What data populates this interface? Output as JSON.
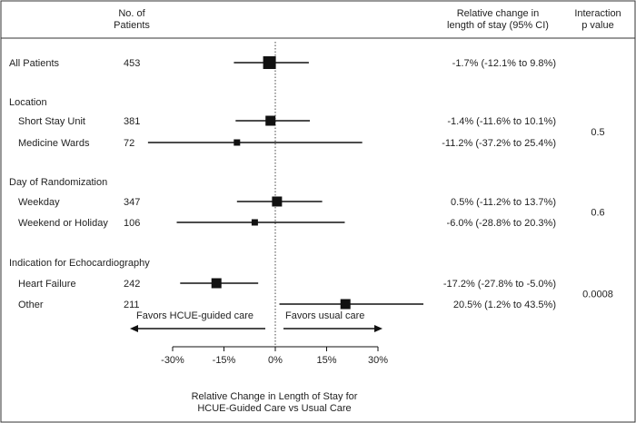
{
  "headers": {
    "patients_line1": "No. of",
    "patients_line2": "Patients",
    "rel_line1": "Relative change in",
    "rel_line2": "length of stay (95% CI)",
    "int_line1": "Interaction",
    "int_line2": "p value"
  },
  "favors_left": "Favors HCUE-guided care",
  "favors_right": "Favors usual care",
  "chart_data": {
    "type": "forest",
    "xlabel_line1": "Relative Change in Length of Stay for",
    "xlabel_line2": "HCUE-Guided Care vs Usual Care",
    "xlim": [
      -0.3,
      0.3
    ],
    "xticks": [
      -0.3,
      -0.15,
      0,
      0.15,
      0.3
    ],
    "xtick_labels": [
      "-30%",
      "-15%",
      "0%",
      "15%",
      "30%"
    ],
    "rows": [
      {
        "type": "item",
        "label": "All Patients",
        "indent": false,
        "n": "453",
        "est": -0.017,
        "lo": -0.121,
        "hi": 0.098,
        "ci_text": "-1.7% (-12.1% to 9.8%)",
        "box": "large"
      },
      {
        "type": "group",
        "label": "Location"
      },
      {
        "type": "item",
        "label": "Short Stay Unit",
        "indent": true,
        "n": "381",
        "est": -0.014,
        "lo": -0.116,
        "hi": 0.101,
        "ci_text": "-1.4% (-11.6% to 10.1%)",
        "box": "medium"
      },
      {
        "type": "item",
        "label": "Medicine Wards",
        "indent": true,
        "n": "72",
        "est": -0.112,
        "lo": -0.372,
        "hi": 0.254,
        "ci_text": "-11.2% (-37.2% to 25.4%)",
        "box": "small"
      },
      {
        "type": "group",
        "label": "Day of Randomization"
      },
      {
        "type": "item",
        "label": "Weekday",
        "indent": true,
        "n": "347",
        "est": 0.005,
        "lo": -0.112,
        "hi": 0.137,
        "ci_text": "0.5% (-11.2% to 13.7%)",
        "box": "medium"
      },
      {
        "type": "item",
        "label": "Weekend or Holiday",
        "indent": true,
        "n": "106",
        "est": -0.06,
        "lo": -0.288,
        "hi": 0.203,
        "ci_text": "-6.0% (-28.8% to 20.3%)",
        "box": "small"
      },
      {
        "type": "group",
        "label": "Indication for Echocardiography"
      },
      {
        "type": "item",
        "label": "Heart Failure",
        "indent": true,
        "n": "242",
        "est": -0.172,
        "lo": -0.278,
        "hi": -0.05,
        "ci_text": "-17.2% (-27.8% to -5.0%)",
        "box": "medium"
      },
      {
        "type": "item",
        "label": "Other",
        "indent": true,
        "n": "211",
        "est": 0.205,
        "lo": 0.012,
        "hi": 0.435,
        "ci_text": "20.5% (1.2% to 43.5%)",
        "box": "medium"
      }
    ],
    "interaction_p": [
      {
        "value": "0.5",
        "rows": [
          2,
          3
        ]
      },
      {
        "value": "0.6",
        "rows": [
          5,
          6
        ]
      },
      {
        "value": "0.0008",
        "rows": [
          8,
          9
        ]
      }
    ]
  }
}
